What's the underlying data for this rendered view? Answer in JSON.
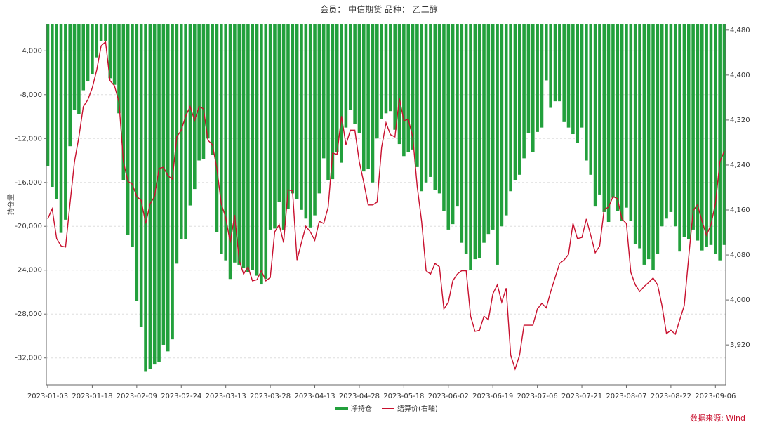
{
  "chart_data": {
    "type": "bar_line",
    "title": "会员： 中信期货 品种： 乙二醇",
    "y_label": "持仓量",
    "source": "数据来源: Wind",
    "categories": [
      "2023-01-03",
      null,
      null,
      null,
      null,
      null,
      null,
      null,
      null,
      null,
      "2023-01-18",
      null,
      null,
      null,
      null,
      null,
      null,
      null,
      null,
      null,
      "2023-02-09",
      null,
      null,
      null,
      null,
      null,
      null,
      null,
      null,
      null,
      "2023-02-24",
      null,
      null,
      null,
      null,
      null,
      null,
      null,
      null,
      null,
      "2023-03-13",
      null,
      null,
      null,
      null,
      null,
      null,
      null,
      null,
      null,
      "2023-03-28",
      null,
      null,
      null,
      null,
      null,
      null,
      null,
      null,
      null,
      "2023-04-13",
      null,
      null,
      null,
      null,
      null,
      null,
      null,
      null,
      null,
      "2023-04-28",
      null,
      null,
      null,
      null,
      null,
      null,
      null,
      null,
      null,
      "2023-05-18",
      null,
      null,
      null,
      null,
      null,
      null,
      null,
      null,
      null,
      "2023-06-02",
      null,
      null,
      null,
      null,
      null,
      null,
      null,
      null,
      null,
      "2023-06-19",
      null,
      null,
      null,
      null,
      null,
      null,
      null,
      null,
      null,
      "2023-07-06",
      null,
      null,
      null,
      null,
      null,
      null,
      null,
      null,
      null,
      "2023-07-21",
      null,
      null,
      null,
      null,
      null,
      null,
      null,
      null,
      null,
      "2023-08-07",
      null,
      null,
      null,
      null,
      null,
      null,
      null,
      null,
      null,
      "2023-08-22",
      null,
      null,
      null,
      null,
      null,
      null,
      null,
      null,
      null,
      "2023-09-06",
      null,
      null
    ],
    "series": [
      {
        "name": "净持仓",
        "type": "bar",
        "color": "#22a03c",
        "values": [
          -14500,
          -16400,
          -17500,
          -20600,
          -19400,
          -12700,
          -9400,
          -9800,
          -7600,
          -6800,
          -6100,
          -4600,
          -3100,
          -3100,
          -6500,
          -7100,
          -9700,
          -15800,
          -20800,
          -21900,
          -26800,
          -29200,
          -33200,
          -33000,
          -32600,
          -32400,
          -30800,
          -31400,
          -30300,
          -23400,
          -21200,
          -21200,
          -18100,
          -16600,
          -14000,
          -13900,
          -12000,
          -13500,
          -20500,
          -22500,
          -23100,
          -24800,
          -23300,
          -23500,
          -23800,
          -24200,
          -24000,
          -24500,
          -25300,
          -24800,
          -20300,
          -20200,
          -17800,
          -20300,
          -18400,
          -17000,
          -17500,
          -18500,
          -19300,
          -20100,
          -19000,
          -17000,
          -13800,
          -15800,
          -15700,
          -13200,
          -14200,
          -11000,
          -9400,
          -10700,
          -11500,
          -15000,
          -14800,
          -16000,
          -12000,
          -10200,
          -9700,
          -9500,
          -11200,
          -12500,
          -13600,
          -13200,
          -13000,
          -14600,
          -16800,
          -16000,
          -15500,
          -16700,
          -17000,
          -18600,
          -20300,
          -19800,
          -18200,
          -21500,
          -22500,
          -24000,
          -23000,
          -22900,
          -21500,
          -20700,
          -20300,
          -23500,
          -20000,
          -19000,
          -16800,
          -15800,
          -15300,
          -13800,
          -11500,
          -13200,
          -11400,
          -11000,
          -6700,
          -9200,
          -8600,
          -8600,
          -10500,
          -11000,
          -11600,
          -12400,
          -11000,
          -14000,
          -15300,
          -18200,
          -17100,
          -18700,
          -19600,
          -17400,
          -18600,
          -19500,
          -18300,
          -19500,
          -21600,
          -22000,
          -23500,
          -23000,
          -24000,
          -22500,
          -20000,
          -19300,
          -18700,
          -20000,
          -22300,
          -21000,
          -21200,
          -20300,
          -21300,
          -22200,
          -21900,
          -21700,
          -22500,
          -23100,
          -21700
        ]
      },
      {
        "name": "结算价(右轴)",
        "type": "line",
        "axis": "y2",
        "color": "#c8102e",
        "values": [
          4144,
          4162,
          4109,
          4096,
          4094,
          4171,
          4246,
          4290,
          4344,
          4356,
          4377,
          4409,
          4452,
          4459,
          4390,
          4381,
          4352,
          4246,
          4211,
          4206,
          4184,
          4177,
          4136,
          4171,
          4184,
          4234,
          4236,
          4221,
          4215,
          4290,
          4302,
          4327,
          4344,
          4319,
          4344,
          4340,
          4284,
          4276,
          4234,
          4171,
          4146,
          4102,
          4151,
          4071,
          4046,
          4059,
          4034,
          4036,
          4052,
          4034,
          4040,
          4121,
          4134,
          4102,
          4196,
          4194,
          4071,
          4102,
          4131,
          4121,
          4106,
          4140,
          4136,
          4165,
          4261,
          4259,
          4327,
          4276,
          4302,
          4302,
          4246,
          4209,
          4169,
          4169,
          4174,
          4271,
          4315,
          4294,
          4290,
          4359,
          4319,
          4321,
          4290,
          4202,
          4140,
          4052,
          4046,
          4065,
          4059,
          3984,
          3996,
          4034,
          4046,
          4052,
          4052,
          3971,
          3944,
          3946,
          3971,
          3965,
          4011,
          4027,
          3996,
          4021,
          3902,
          3877,
          3902,
          3955,
          3955,
          3955,
          3984,
          3994,
          3986,
          4015,
          4040,
          4065,
          4071,
          4081,
          4136,
          4109,
          4111,
          4144,
          4115,
          4084,
          4096,
          4161,
          4165,
          4184,
          4180,
          4144,
          4136,
          4049,
          4027,
          4015,
          4024,
          4031,
          4039,
          4027,
          3990,
          3940,
          3946,
          3939,
          3965,
          3990,
          4077,
          4159,
          4169,
          4140,
          4115,
          4134,
          4171,
          4246,
          4265
        ]
      }
    ],
    "ylim": [
      -34450,
      -1550
    ],
    "yticks": [
      {
        "value": -4000,
        "label": "-4,000"
      },
      {
        "value": -8000,
        "label": "-8,000"
      },
      {
        "value": -12000,
        "label": "-12,000"
      },
      {
        "value": -16000,
        "label": "-16,000"
      },
      {
        "value": -20000,
        "label": "-20,000"
      },
      {
        "value": -24000,
        "label": "-24,000"
      },
      {
        "value": -28000,
        "label": "-28,000"
      },
      {
        "value": -32000,
        "label": "-32,000"
      }
    ],
    "y2lim": [
      3849,
      4491
    ],
    "y2ticks": [
      {
        "value": 3920,
        "label": "3,920"
      },
      {
        "value": 4000,
        "label": "4,000"
      },
      {
        "value": 4080,
        "label": "4,080"
      },
      {
        "value": 4160,
        "label": "4,160"
      },
      {
        "value": 4240,
        "label": "4,240"
      },
      {
        "value": 4320,
        "label": "4,320"
      },
      {
        "value": 4400,
        "label": "4,400"
      },
      {
        "value": 4480,
        "label": "4,480"
      }
    ],
    "grid": true
  }
}
